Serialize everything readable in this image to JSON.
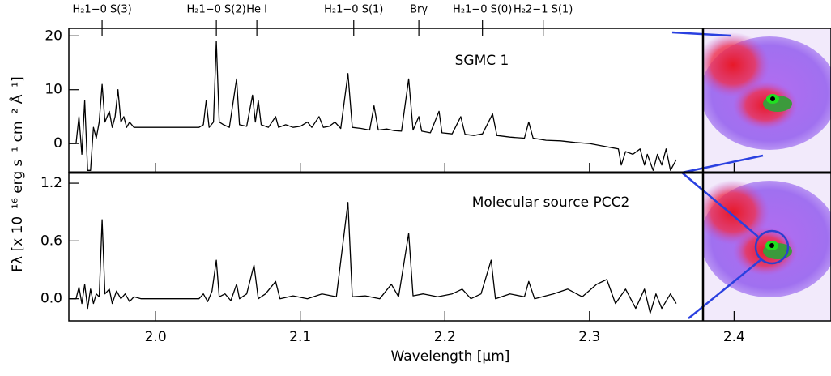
{
  "chart_data": [
    {
      "type": "line",
      "annotation": "SGMC 1",
      "ylabel": "Fλ [x 10⁻¹⁶ erg s⁻¹ cm⁻² Å⁻¹]",
      "line_markers": [
        {
          "value": 1.963,
          "label": "H₂1−0 S(3)"
        },
        {
          "value": 2.042,
          "label": "H₂1−0 S(2)"
        },
        {
          "value": 2.07,
          "label": "He I"
        },
        {
          "value": 2.137,
          "label": "H₂1−0 S(1)"
        },
        {
          "value": 2.182,
          "label": "Brγ"
        },
        {
          "value": 2.226,
          "label": "H₂1−0 S(0)"
        },
        {
          "value": 2.268,
          "label": "H₂2−1 S(1)"
        }
      ],
      "xlim": [
        1.94,
        2.467
      ],
      "ylim": [
        -5.4,
        21.4
      ],
      "yticks": [
        0,
        10,
        20
      ],
      "x": [
        1.94,
        1.945,
        1.947,
        1.949,
        1.951,
        1.953,
        1.955,
        1.957,
        1.959,
        1.961,
        1.963,
        1.965,
        1.968,
        1.97,
        1.972,
        1.974,
        1.976,
        1.978,
        1.98,
        1.982,
        1.985,
        1.99,
        2.03,
        2.033,
        2.035,
        2.037,
        2.04,
        2.042,
        2.044,
        2.047,
        2.051,
        2.056,
        2.058,
        2.063,
        2.067,
        2.069,
        2.071,
        2.073,
        2.078,
        2.083,
        2.085,
        2.09,
        2.095,
        2.1,
        2.105,
        2.108,
        2.113,
        2.116,
        2.12,
        2.124,
        2.128,
        2.133,
        2.136,
        2.142,
        2.148,
        2.151,
        2.154,
        2.16,
        2.165,
        2.17,
        2.175,
        2.178,
        2.182,
        2.184,
        2.19,
        2.196,
        2.198,
        2.205,
        2.211,
        2.214,
        2.22,
        2.226,
        2.233,
        2.236,
        2.245,
        2.255,
        2.258,
        2.261,
        2.27,
        2.28,
        2.29,
        2.3,
        2.31,
        2.32,
        2.322,
        2.325,
        2.33,
        2.335,
        2.338,
        2.34,
        2.344,
        2.347,
        2.35,
        2.353,
        2.356,
        2.36
      ],
      "series": [
        {
          "color": "#000000",
          "values": [
            0,
            0,
            5,
            -2,
            8,
            -5,
            -5,
            3,
            1,
            4,
            11,
            4,
            6,
            3,
            5,
            10,
            4,
            5,
            3,
            4,
            3,
            3,
            3,
            3.5,
            8,
            3,
            4,
            19,
            4,
            3.5,
            3,
            12,
            3.5,
            3.2,
            9,
            4,
            8,
            3.5,
            3,
            5,
            3,
            3.5,
            3,
            3.2,
            4,
            3,
            5,
            3,
            3.2,
            4,
            2.8,
            13,
            3,
            2.8,
            2.5,
            7,
            2.5,
            2.7,
            2.4,
            2.3,
            12,
            2.5,
            5,
            2.3,
            2,
            6,
            2,
            1.8,
            5,
            1.7,
            1.5,
            1.8,
            5.5,
            1.5,
            1.2,
            1,
            4,
            1,
            0.6,
            0.5,
            0.2,
            0,
            -0.5,
            -1,
            -4,
            -1.5,
            -2,
            -1,
            -4,
            -2,
            -5,
            -2,
            -4,
            -1,
            -5,
            -3
          ]
        }
      ]
    },
    {
      "type": "line",
      "annotation": "Molecular source PCC2",
      "xlabel": "Wavelength [μm]",
      "xlim": [
        1.94,
        2.467
      ],
      "xticks": [
        {
          "value": 2.0,
          "label": "2.0"
        },
        2.1,
        2.2,
        2.3,
        2.4
      ],
      "ylim": [
        -0.23,
        1.31
      ],
      "yticks": [
        {
          "value": 0,
          "label": "0.0"
        },
        0.6,
        1.2
      ],
      "x": [
        1.94,
        1.945,
        1.947,
        1.949,
        1.951,
        1.953,
        1.955,
        1.957,
        1.959,
        1.961,
        1.963,
        1.965,
        1.968,
        1.97,
        1.973,
        1.976,
        1.979,
        1.982,
        1.985,
        1.99,
        2.03,
        2.033,
        2.036,
        2.039,
        2.042,
        2.044,
        2.048,
        2.052,
        2.056,
        2.058,
        2.063,
        2.068,
        2.071,
        2.076,
        2.083,
        2.086,
        2.095,
        2.105,
        2.115,
        2.125,
        2.133,
        2.136,
        2.145,
        2.155,
        2.163,
        2.168,
        2.175,
        2.178,
        2.185,
        2.195,
        2.205,
        2.212,
        2.218,
        2.225,
        2.232,
        2.235,
        2.245,
        2.255,
        2.258,
        2.262,
        2.275,
        2.285,
        2.295,
        2.305,
        2.312,
        2.318,
        2.325,
        2.332,
        2.338,
        2.342,
        2.346,
        2.35,
        2.356,
        2.36
      ],
      "series": [
        {
          "color": "#000000",
          "values": [
            0,
            0,
            0.12,
            -0.05,
            0.15,
            -0.1,
            0.1,
            -0.05,
            0.05,
            0.02,
            0.82,
            0.05,
            0.1,
            -0.05,
            0.08,
            0,
            0.05,
            -0.03,
            0.02,
            0,
            0,
            0.05,
            -0.03,
            0.08,
            0.4,
            0.02,
            0.05,
            -0.02,
            0.15,
            0,
            0.05,
            0.35,
            0,
            0.05,
            0.18,
            0,
            0.03,
            0,
            0.05,
            0.02,
            1.0,
            0.02,
            0.03,
            0,
            0.15,
            0.02,
            0.68,
            0.03,
            0.05,
            0.02,
            0.05,
            0.1,
            0,
            0.05,
            0.4,
            0,
            0.05,
            0.02,
            0.18,
            0,
            0.05,
            0.1,
            0.02,
            0.15,
            0.2,
            -0.05,
            0.1,
            -0.1,
            0.1,
            -0.15,
            0.05,
            -0.1,
            0.05,
            -0.05
          ]
        }
      ]
    }
  ]
}
